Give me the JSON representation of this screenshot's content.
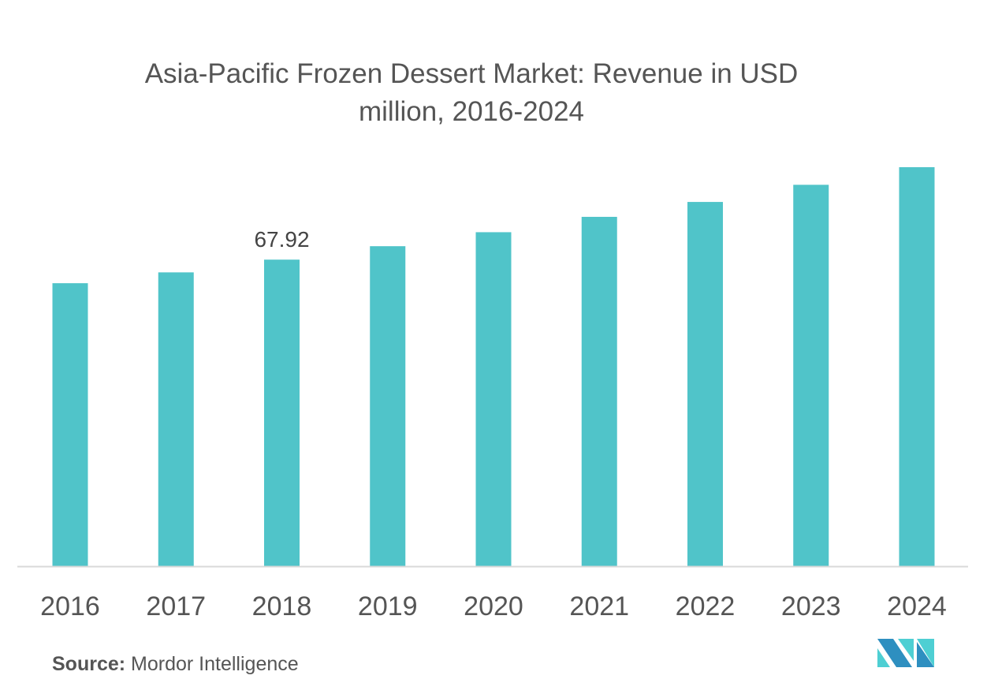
{
  "chart_data": {
    "type": "bar",
    "title": "Asia-Pacific Frozen Dessert Market: Revenue in USD million,  2016-2024",
    "title_lines": [
      "Asia-Pacific Frozen Dessert Market: Revenue in USD",
      "million,  2016-2024"
    ],
    "categories": [
      "2016",
      "2017",
      "2018",
      "2019",
      "2020",
      "2021",
      "2022",
      "2023",
      "2024"
    ],
    "values": [
      62.7,
      65.1,
      67.92,
      70.9,
      74.0,
      77.4,
      80.7,
      84.5,
      88.4
    ],
    "data_labels": [
      {
        "category": "2018",
        "text": "67.92"
      }
    ],
    "xlabel": "",
    "ylabel": "",
    "ylim": [
      0,
      88.4
    ],
    "grid": false,
    "bar_color": "#50c4c9",
    "axis_color": "#d9d9d9"
  },
  "source": {
    "label": "Source:",
    "text": "Mordor Intelligence"
  },
  "logo": {
    "name": "mordor-intelligence-logo",
    "colors": [
      "#2e8fc0",
      "#4ecfd3"
    ]
  }
}
